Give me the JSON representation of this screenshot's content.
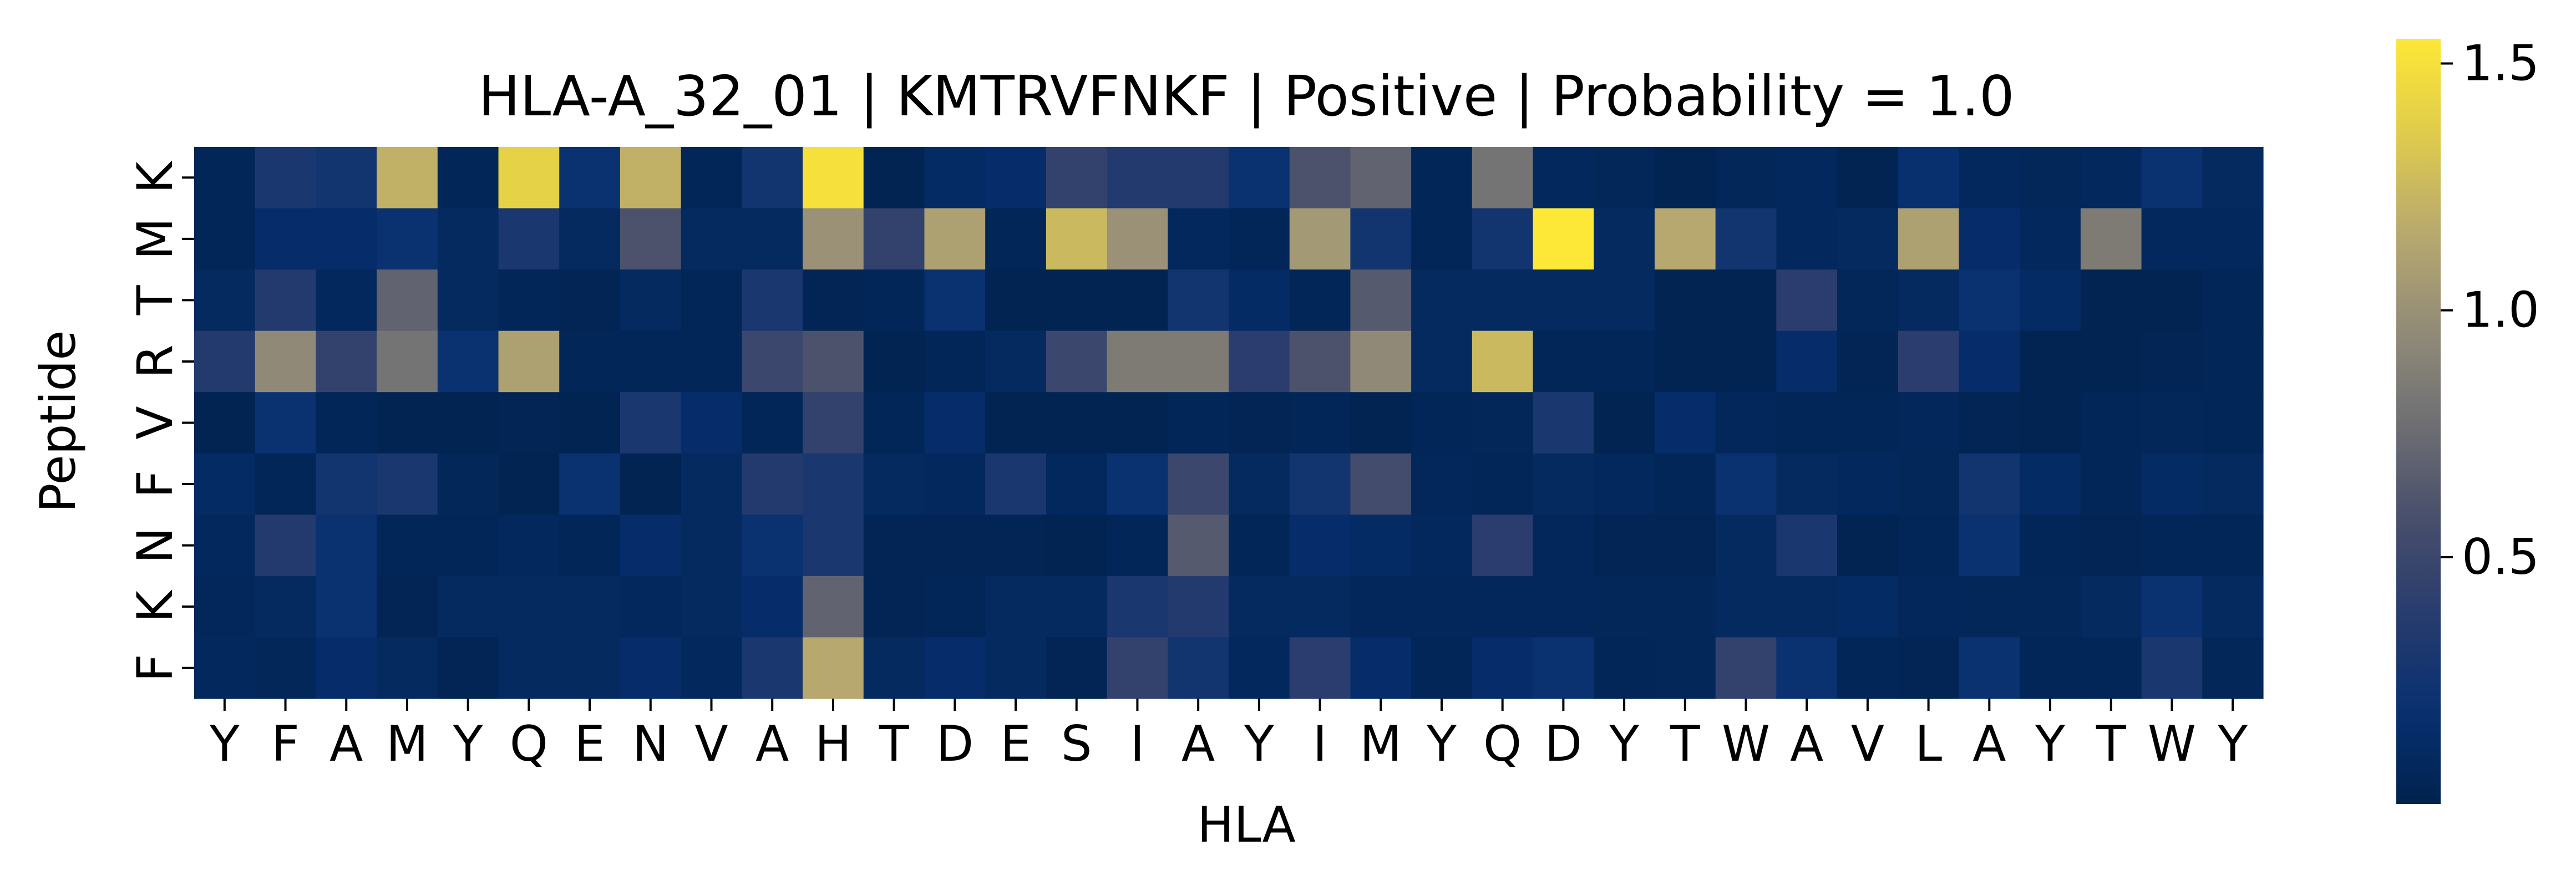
{
  "chart_data": {
    "type": "heatmap",
    "title": "HLA-A_32_01 | KMTRVFNKF | Positive | Probability = 1.0",
    "xlabel": "HLA",
    "ylabel": "Peptide",
    "x_categories": [
      "Y",
      "F",
      "A",
      "M",
      "Y",
      "Q",
      "E",
      "N",
      "V",
      "A",
      "H",
      "T",
      "D",
      "E",
      "S",
      "I",
      "A",
      "Y",
      "I",
      "M",
      "Y",
      "Q",
      "D",
      "Y",
      "T",
      "W",
      "A",
      "V",
      "L",
      "A",
      "Y",
      "T",
      "W",
      "Y"
    ],
    "y_categories": [
      "K",
      "M",
      "T",
      "R",
      "V",
      "F",
      "N",
      "K",
      "F"
    ],
    "colormap": "cividis",
    "colorbar": {
      "range": [
        0.0,
        1.55
      ],
      "ticks": [
        0.5,
        1.0,
        1.5
      ],
      "tick_labels": [
        "0.5",
        "1.0",
        "1.5"
      ]
    },
    "values": [
      [
        0.05,
        0.3,
        0.25,
        1.2,
        0.05,
        1.4,
        0.2,
        1.2,
        0.05,
        0.25,
        1.5,
        0.02,
        0.12,
        0.15,
        0.45,
        0.35,
        0.35,
        0.2,
        0.6,
        0.7,
        0.05,
        0.8,
        0.08,
        0.06,
        0.02,
        0.06,
        0.08,
        0.02,
        0.18,
        0.08,
        0.06,
        0.08,
        0.2,
        0.1
      ],
      [
        0.05,
        0.15,
        0.15,
        0.2,
        0.1,
        0.3,
        0.1,
        0.6,
        0.1,
        0.1,
        1.0,
        0.45,
        1.1,
        0.05,
        1.25,
        1.0,
        0.08,
        0.05,
        1.05,
        0.25,
        0.05,
        0.25,
        1.55,
        0.1,
        1.15,
        0.25,
        0.08,
        0.1,
        1.1,
        0.15,
        0.08,
        0.85,
        0.08,
        0.08
      ],
      [
        0.1,
        0.35,
        0.08,
        0.7,
        0.1,
        0.05,
        0.04,
        0.1,
        0.05,
        0.3,
        0.04,
        0.05,
        0.2,
        0.03,
        0.03,
        0.03,
        0.25,
        0.12,
        0.05,
        0.65,
        0.1,
        0.1,
        0.1,
        0.1,
        0.02,
        0.03,
        0.4,
        0.06,
        0.1,
        0.2,
        0.12,
        0.02,
        0.03,
        0.05
      ],
      [
        0.35,
        0.95,
        0.45,
        0.8,
        0.2,
        1.1,
        0.05,
        0.05,
        0.05,
        0.5,
        0.6,
        0.03,
        0.05,
        0.1,
        0.5,
        0.85,
        0.85,
        0.4,
        0.6,
        0.95,
        0.1,
        1.25,
        0.05,
        0.05,
        0.03,
        0.03,
        0.15,
        0.04,
        0.4,
        0.15,
        0.03,
        0.02,
        0.04,
        0.05
      ],
      [
        0.03,
        0.2,
        0.05,
        0.03,
        0.03,
        0.04,
        0.03,
        0.3,
        0.15,
        0.05,
        0.45,
        0.05,
        0.15,
        0.03,
        0.03,
        0.03,
        0.05,
        0.04,
        0.05,
        0.02,
        0.05,
        0.06,
        0.3,
        0.03,
        0.15,
        0.07,
        0.05,
        0.05,
        0.07,
        0.04,
        0.03,
        0.05,
        0.06,
        0.05
      ],
      [
        0.12,
        0.05,
        0.25,
        0.3,
        0.06,
        0.03,
        0.2,
        0.02,
        0.1,
        0.35,
        0.3,
        0.1,
        0.08,
        0.3,
        0.08,
        0.2,
        0.5,
        0.1,
        0.25,
        0.55,
        0.07,
        0.05,
        0.1,
        0.08,
        0.05,
        0.2,
        0.1,
        0.08,
        0.06,
        0.25,
        0.12,
        0.05,
        0.12,
        0.1
      ],
      [
        0.08,
        0.35,
        0.2,
        0.05,
        0.05,
        0.08,
        0.05,
        0.15,
        0.1,
        0.2,
        0.3,
        0.04,
        0.04,
        0.04,
        0.02,
        0.05,
        0.65,
        0.05,
        0.15,
        0.12,
        0.08,
        0.4,
        0.07,
        0.04,
        0.04,
        0.1,
        0.3,
        0.03,
        0.05,
        0.2,
        0.05,
        0.04,
        0.05,
        0.05
      ],
      [
        0.07,
        0.1,
        0.2,
        0.04,
        0.1,
        0.1,
        0.1,
        0.08,
        0.1,
        0.15,
        0.7,
        0.04,
        0.05,
        0.1,
        0.1,
        0.3,
        0.35,
        0.1,
        0.1,
        0.07,
        0.07,
        0.07,
        0.07,
        0.06,
        0.06,
        0.1,
        0.1,
        0.12,
        0.07,
        0.06,
        0.06,
        0.1,
        0.2,
        0.1
      ],
      [
        0.08,
        0.06,
        0.15,
        0.1,
        0.04,
        0.1,
        0.1,
        0.15,
        0.08,
        0.3,
        1.15,
        0.1,
        0.15,
        0.1,
        0.04,
        0.45,
        0.25,
        0.08,
        0.4,
        0.15,
        0.05,
        0.15,
        0.2,
        0.05,
        0.06,
        0.45,
        0.2,
        0.05,
        0.04,
        0.2,
        0.05,
        0.05,
        0.3,
        0.06
      ]
    ]
  }
}
